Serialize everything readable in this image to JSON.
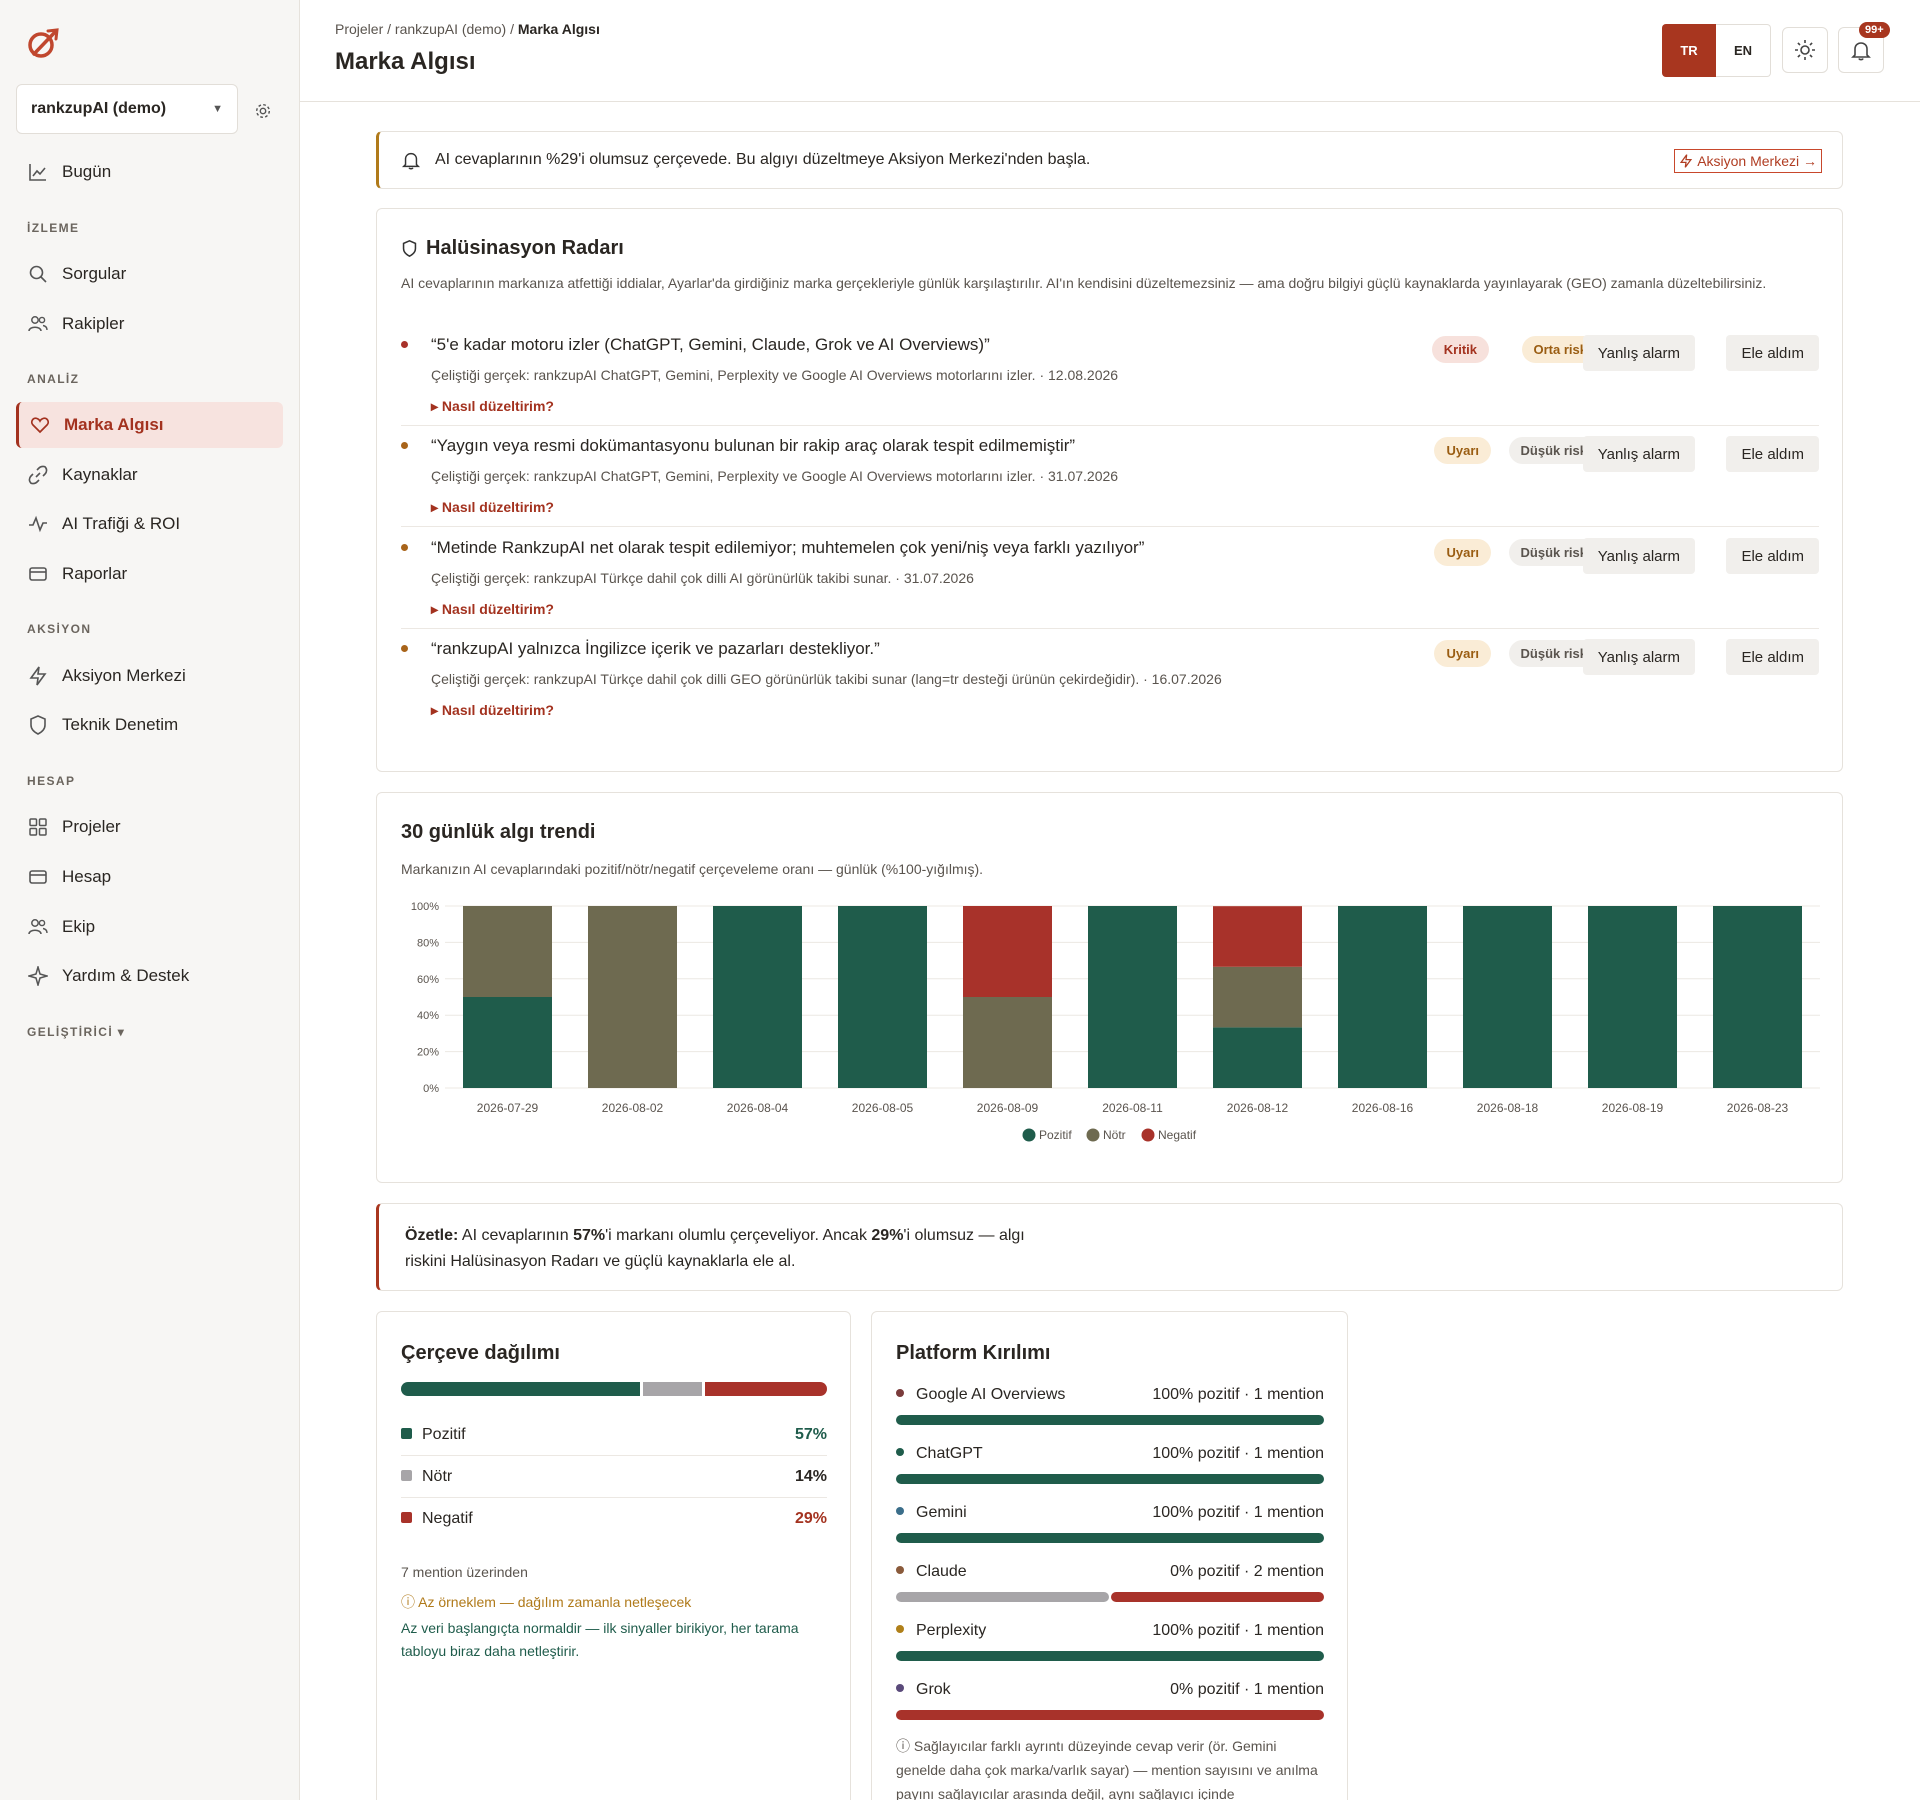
{
  "sidebar": {
    "project": "rankzupAI (demo)",
    "today": "Bugün",
    "sections": [
      {
        "title": "İZLEME",
        "items": [
          "Sorgular",
          "Rakipler"
        ]
      },
      {
        "title": "ANALİZ",
        "items": [
          "Marka Algısı",
          "Kaynaklar",
          "AI Trafiği & ROI",
          "Raporlar"
        ]
      },
      {
        "title": "AKSİYON",
        "items": [
          "Aksiyon Merkezi",
          "Teknik Denetim"
        ]
      },
      {
        "title": "HESAP",
        "items": [
          "Projeler",
          "Hesap",
          "Ekip",
          "Yardım & Destek"
        ]
      }
    ],
    "developer": "GELİŞTİRİCİ ▾"
  },
  "header": {
    "breadcrumb": [
      "Projeler",
      "rankzupAI (demo)",
      "Marka Algısı"
    ],
    "title": "Marka Algısı",
    "lang_tr": "TR",
    "lang_en": "EN",
    "notif_count": "99+"
  },
  "alert": {
    "text": "AI cevaplarının %29'i olumsuz çerçevede. Bu algıyı düzeltmeye Aksiyon Merkezi'nden başla.",
    "action": "Aksiyon Merkezi →"
  },
  "hallucination": {
    "title": "Halüsinasyon Radarı",
    "desc": "AI cevaplarının markanıza atfettiği iddialar, Ayarlar'da girdiğiniz marka gerçekleriyle günlük karşılaştırılır. AI'ın kendisini düzeltemezsiniz — ama doğru bilgiyi güçlü kaynaklarda yayınlayarak (GEO) zamanla düzeltebilirsiniz.",
    "fix_label": "▸ Nasıl düzeltirim?",
    "false_alarm": "Yanlış alarm",
    "handled": "Ele aldım",
    "items": [
      {
        "claim": "“5'e kadar motoru izler (ChatGPT, Gemini, Claude, Grok ve AI Overviews)”",
        "fact": "Çeliştiği gerçek: rankzupAI ChatGPT, Gemini, Perplexity ve Google AI Overviews motorlarını izler. · 12.08.2026",
        "severity": "Kritik",
        "risk": "Orta risk"
      },
      {
        "claim": "“Yaygın veya resmi dokümantasyonu bulunan bir rakip araç olarak tespit edilmemiştir”",
        "fact": "Çeliştiği gerçek: rankzupAI ChatGPT, Gemini, Perplexity ve Google AI Overviews motorlarını izler. · 31.07.2026",
        "severity": "Uyarı",
        "risk": "Düşük risk"
      },
      {
        "claim": "“Metinde RankzupAI net olarak tespit edilemiyor; muhtemelen çok yeni/niş veya farklı yazılıyor”",
        "fact": "Çeliştiği gerçek: rankzupAI Türkçe dahil çok dilli AI görünürlük takibi sunar. · 31.07.2026",
        "severity": "Uyarı",
        "risk": "Düşük risk"
      },
      {
        "claim": "“rankzupAI yalnızca İngilizce içerik ve pazarları destekliyor.”",
        "fact": "Çeliştiği gerçek: rankzupAI Türkçe dahil çok dilli GEO görünürlük takibi sunar (lang=tr desteği ürünün çekirdeğidir). · 16.07.2026",
        "severity": "Uyarı",
        "risk": "Düşük risk"
      }
    ]
  },
  "trend": {
    "title": "30 günlük algı trendi",
    "desc": "Markanızın AI cevaplarındaki pozitif/nötr/negatif çerçeveleme oranı — günlük (%100-yığılmış)."
  },
  "chart_data": {
    "type": "bar",
    "stacked": true,
    "categories": [
      "2026-07-29",
      "2026-08-02",
      "2026-08-04",
      "2026-08-05",
      "2026-08-09",
      "2026-08-11",
      "2026-08-12",
      "2026-08-16",
      "2026-08-18",
      "2026-08-19",
      "2026-08-23"
    ],
    "series": [
      {
        "name": "Pozitif",
        "color": "#1f5c4b",
        "values": [
          50,
          0,
          100,
          100,
          0,
          100,
          33.3,
          100,
          100,
          100,
          100
        ]
      },
      {
        "name": "Nötr",
        "color": "#6e6a50",
        "values": [
          50,
          100,
          0,
          0,
          50,
          0,
          33.3,
          0,
          0,
          0,
          0
        ]
      },
      {
        "name": "Negatif",
        "color": "#a8322a",
        "values": [
          0,
          0,
          0,
          0,
          50,
          0,
          33.3,
          0,
          0,
          0,
          0
        ]
      }
    ],
    "y_ticks": [
      "100%",
      "80%",
      "60%",
      "40%",
      "20%",
      "0%"
    ],
    "ylim": [
      0,
      100
    ],
    "legend": "bottom-center",
    "grid": true
  },
  "summary": {
    "label": "Özetle:",
    "p1": " AI cevaplarının ",
    "pos": "57%",
    "p2": "'i markanı olumlu çerçeveliyor. Ancak ",
    "neg": "29%",
    "p3": "'i olumsuz — algı",
    "line2": "riskini Halüsinasyon Radarı ve güçlü kaynaklarla ele al."
  },
  "frame": {
    "title": "Çerçeve dağılımı",
    "rows": [
      {
        "label": "Pozitif",
        "value": "57%",
        "pct": 57,
        "color": "#1f5c4b"
      },
      {
        "label": "Nötr",
        "value": "14%",
        "pct": 14,
        "color": "#a7a5a8"
      },
      {
        "label": "Negatif",
        "value": "29%",
        "pct": 29,
        "color": "#a8322a"
      }
    ],
    "basis": "7 mention üzerinden",
    "warning": "ⓘ Az örneklem — dağılım zamanla netleşecek",
    "note": "Az veri başlangıçta normaldir — ilk sinyaller birikiyor, her tarama tabloyu biraz daha netleştirir."
  },
  "platform": {
    "title": "Platform Kırılımı",
    "rows": [
      {
        "name": "Google AI Overviews",
        "value": "100% pozitif · 1 mention",
        "dot": "#7a3b3b",
        "pos": 100,
        "neu": 0,
        "neg": 0
      },
      {
        "name": "ChatGPT",
        "value": "100% pozitif · 1 mention",
        "dot": "#1f5c4b",
        "pos": 100,
        "neu": 0,
        "neg": 0
      },
      {
        "name": "Gemini",
        "value": "100% pozitif · 1 mention",
        "dot": "#3b6e8a",
        "pos": 100,
        "neu": 0,
        "neg": 0
      },
      {
        "name": "Claude",
        "value": "0% pozitif · 2 mention",
        "dot": "#8a5a3b",
        "pos": 0,
        "neu": 50,
        "neg": 50
      },
      {
        "name": "Perplexity",
        "value": "100% pozitif · 1 mention",
        "dot": "#b0801a",
        "pos": 100,
        "neu": 0,
        "neg": 0
      },
      {
        "name": "Grok",
        "value": "0% pozitif · 1 mention",
        "dot": "#5a4a7a",
        "pos": 0,
        "neu": 0,
        "neg": 100
      }
    ],
    "note": "ⓘ Sağlayıcılar farklı ayrıntı düzeyinde cevap verir (ör. Gemini genelde daha çok marka/varlık sayar) — mention sayısını ve anılma payını sağlayıcılar arasında değil, aynı sağlayıcı içinde"
  }
}
